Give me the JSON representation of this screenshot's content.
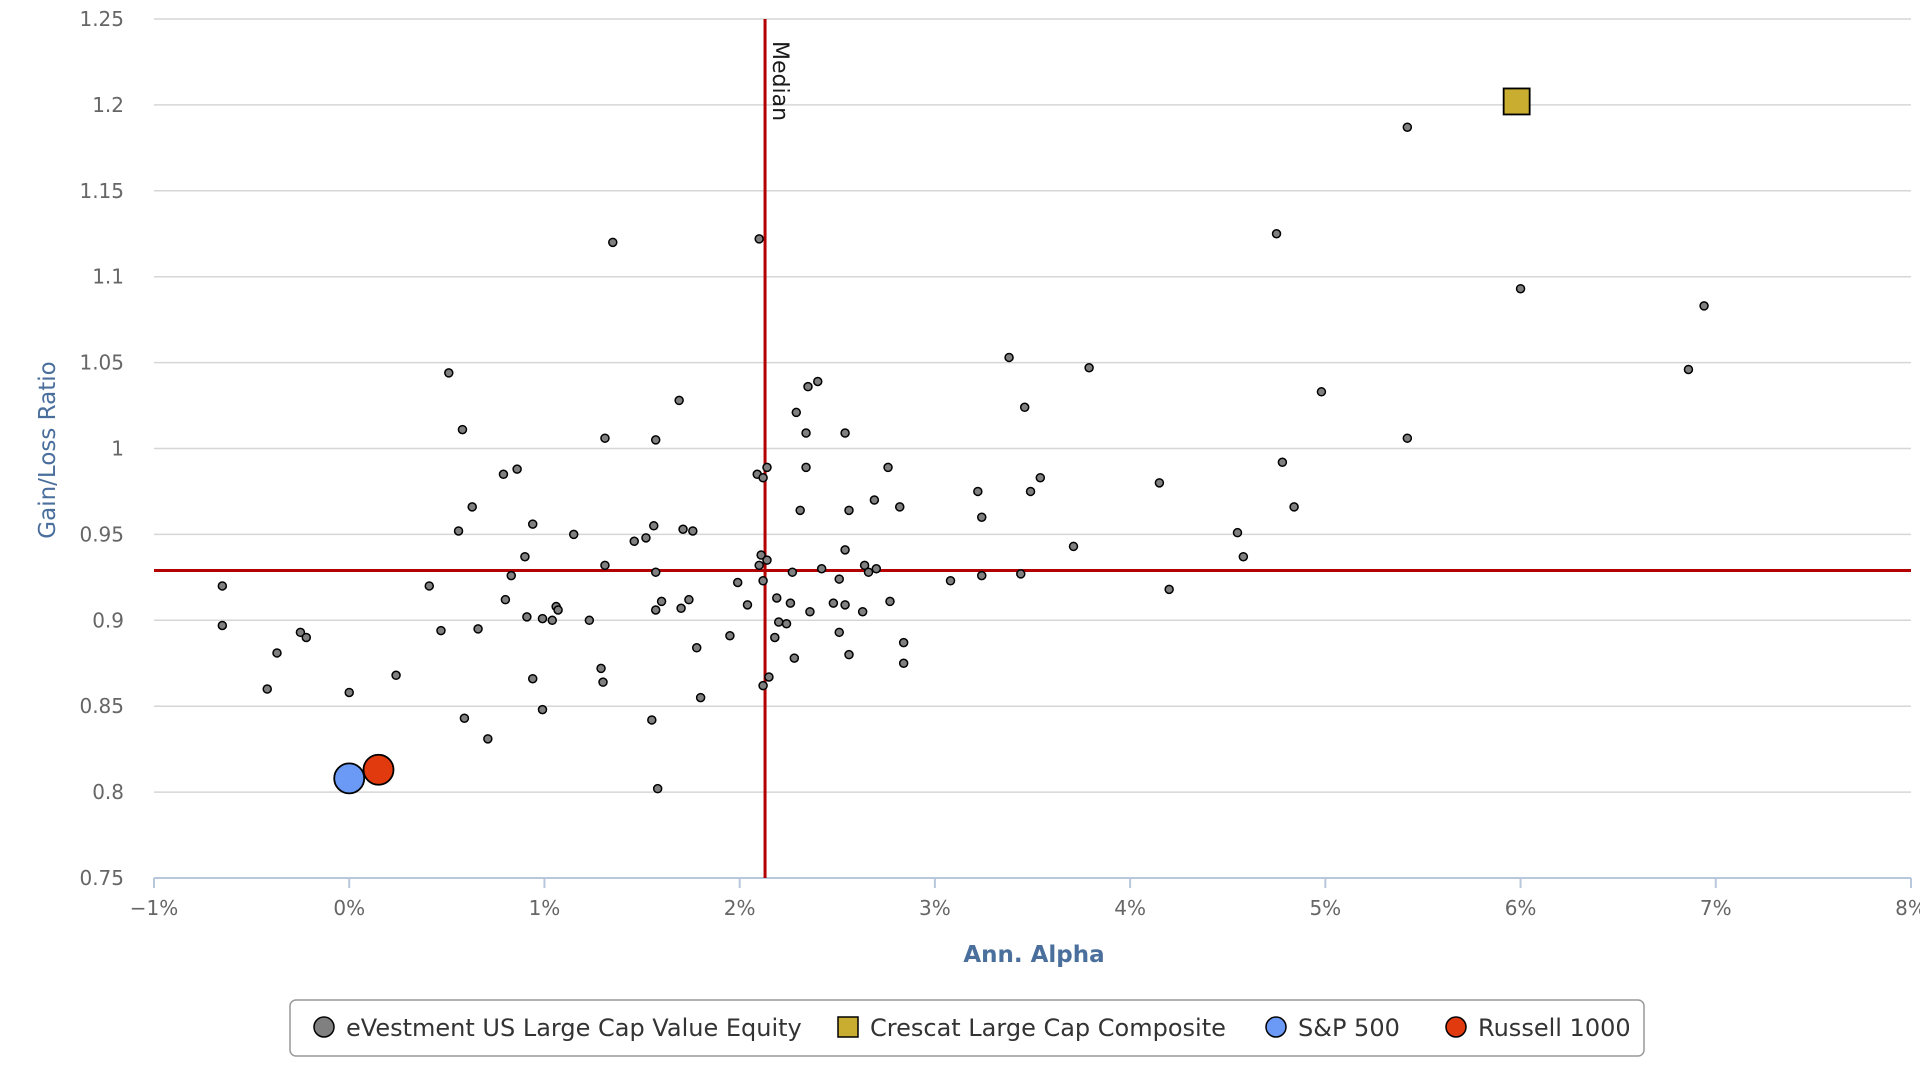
{
  "chart_data": {
    "type": "scatter",
    "xlabel": "Ann. Alpha",
    "ylabel": "Gain/Loss Ratio",
    "xlim": [
      -1,
      8
    ],
    "ylim": [
      0.75,
      1.25
    ],
    "x_ticks": [
      -1,
      0,
      1,
      2,
      3,
      4,
      5,
      6,
      7,
      8
    ],
    "x_tick_labels": [
      "−1%",
      "0%",
      "1%",
      "2%",
      "3%",
      "4%",
      "5%",
      "6%",
      "7%",
      "8%"
    ],
    "y_ticks": [
      0.75,
      0.8,
      0.85,
      0.9,
      0.95,
      1,
      1.05,
      1.1,
      1.15,
      1.2,
      1.25
    ],
    "y_tick_labels": [
      "0.75",
      "0.8",
      "0.85",
      "0.9",
      "0.95",
      "1",
      "1.05",
      "1.1",
      "1.15",
      "1.2",
      "1.25"
    ],
    "grid": "horizontal",
    "legend_position": "bottom",
    "median": {
      "label": "Median",
      "x": 2.13,
      "y": 0.929,
      "color": "#b30000"
    },
    "series": [
      {
        "name": "eVestment US Large Cap Value Equity",
        "marker": "circle",
        "color": "#808080",
        "points": [
          [
            -0.65,
            0.92
          ],
          [
            -0.65,
            0.897
          ],
          [
            -0.42,
            0.86
          ],
          [
            -0.37,
            0.881
          ],
          [
            -0.25,
            0.893
          ],
          [
            -0.22,
            0.89
          ],
          [
            0.0,
            0.858
          ],
          [
            0.24,
            0.868
          ],
          [
            0.41,
            0.92
          ],
          [
            0.47,
            0.894
          ],
          [
            0.51,
            1.044
          ],
          [
            0.56,
            0.952
          ],
          [
            0.58,
            1.011
          ],
          [
            0.59,
            0.843
          ],
          [
            0.63,
            0.966
          ],
          [
            0.66,
            0.895
          ],
          [
            0.71,
            0.831
          ],
          [
            0.79,
            0.985
          ],
          [
            0.8,
            0.912
          ],
          [
            0.83,
            0.926
          ],
          [
            0.86,
            0.988
          ],
          [
            0.9,
            0.937
          ],
          [
            0.91,
            0.902
          ],
          [
            0.94,
            0.956
          ],
          [
            0.94,
            0.866
          ],
          [
            0.99,
            0.901
          ],
          [
            0.99,
            0.848
          ],
          [
            1.04,
            0.9
          ],
          [
            1.06,
            0.908
          ],
          [
            1.07,
            0.906
          ],
          [
            1.15,
            0.95
          ],
          [
            1.23,
            0.9
          ],
          [
            1.29,
            0.872
          ],
          [
            1.3,
            0.864
          ],
          [
            1.31,
            0.932
          ],
          [
            1.31,
            1.006
          ],
          [
            1.35,
            1.12
          ],
          [
            1.46,
            0.946
          ],
          [
            1.52,
            0.948
          ],
          [
            1.55,
            0.842
          ],
          [
            1.56,
            0.955
          ],
          [
            1.57,
            0.928
          ],
          [
            1.57,
            0.906
          ],
          [
            1.57,
            1.005
          ],
          [
            1.58,
            0.802
          ],
          [
            1.6,
            0.911
          ],
          [
            1.69,
            1.028
          ],
          [
            1.7,
            0.907
          ],
          [
            1.71,
            0.953
          ],
          [
            1.74,
            0.912
          ],
          [
            1.76,
            0.952
          ],
          [
            1.78,
            0.884
          ],
          [
            1.8,
            0.855
          ],
          [
            1.95,
            0.891
          ],
          [
            1.99,
            0.922
          ],
          [
            2.04,
            0.909
          ],
          [
            2.09,
            0.985
          ],
          [
            2.1,
            1.122
          ],
          [
            2.1,
            0.932
          ],
          [
            2.11,
            0.938
          ],
          [
            2.12,
            0.983
          ],
          [
            2.12,
            0.923
          ],
          [
            2.12,
            0.862
          ],
          [
            2.14,
            0.989
          ],
          [
            2.14,
            0.935
          ],
          [
            2.15,
            0.867
          ],
          [
            2.18,
            0.89
          ],
          [
            2.19,
            0.913
          ],
          [
            2.2,
            0.899
          ],
          [
            2.24,
            0.898
          ],
          [
            2.26,
            0.91
          ],
          [
            2.27,
            0.928
          ],
          [
            2.28,
            0.878
          ],
          [
            2.29,
            1.021
          ],
          [
            2.31,
            0.964
          ],
          [
            2.34,
            0.989
          ],
          [
            2.34,
            1.009
          ],
          [
            2.35,
            1.036
          ],
          [
            2.36,
            0.905
          ],
          [
            2.4,
            1.039
          ],
          [
            2.42,
            0.93
          ],
          [
            2.48,
            0.91
          ],
          [
            2.51,
            0.924
          ],
          [
            2.51,
            0.893
          ],
          [
            2.54,
            0.941
          ],
          [
            2.54,
            0.909
          ],
          [
            2.54,
            1.009
          ],
          [
            2.56,
            0.964
          ],
          [
            2.56,
            0.88
          ],
          [
            2.63,
            0.905
          ],
          [
            2.64,
            0.932
          ],
          [
            2.66,
            0.928
          ],
          [
            2.69,
            0.97
          ],
          [
            2.7,
            0.93
          ],
          [
            2.76,
            0.989
          ],
          [
            2.77,
            0.911
          ],
          [
            2.82,
            0.966
          ],
          [
            2.84,
            0.887
          ],
          [
            2.84,
            0.875
          ],
          [
            3.08,
            0.923
          ],
          [
            3.22,
            0.975
          ],
          [
            3.24,
            0.96
          ],
          [
            3.24,
            0.926
          ],
          [
            3.38,
            1.053
          ],
          [
            3.44,
            0.927
          ],
          [
            3.46,
            1.024
          ],
          [
            3.49,
            0.975
          ],
          [
            3.54,
            0.983
          ],
          [
            3.71,
            0.943
          ],
          [
            3.79,
            1.047
          ],
          [
            4.15,
            0.98
          ],
          [
            4.2,
            0.918
          ],
          [
            4.55,
            0.951
          ],
          [
            4.58,
            0.937
          ],
          [
            4.75,
            1.125
          ],
          [
            4.78,
            0.992
          ],
          [
            4.84,
            0.966
          ],
          [
            4.98,
            1.033
          ],
          [
            5.42,
            1.187
          ],
          [
            5.42,
            1.006
          ],
          [
            6.0,
            1.093
          ],
          [
            6.86,
            1.046
          ],
          [
            6.94,
            1.083
          ]
        ]
      },
      {
        "name": "Crescat Large Cap Composite",
        "marker": "square",
        "color": "#c8ad30",
        "points": [
          [
            5.98,
            1.202
          ]
        ]
      },
      {
        "name": "S&P 500",
        "marker": "circle",
        "color": "#6a9af5",
        "points": [
          [
            0.0,
            0.808
          ]
        ]
      },
      {
        "name": "Russell 1000",
        "marker": "circle",
        "color": "#e03a0e",
        "points": [
          [
            0.15,
            0.813
          ]
        ]
      }
    ]
  }
}
